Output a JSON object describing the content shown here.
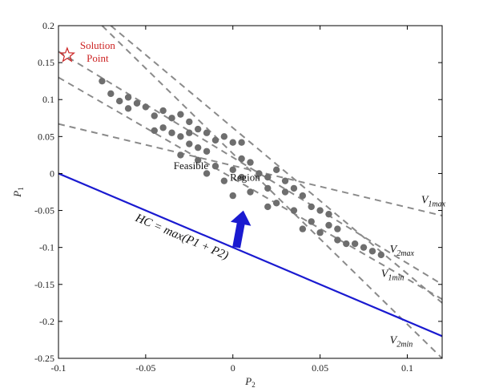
{
  "chart_data": {
    "type": "scatter",
    "title": "",
    "xlabel": "P_2",
    "ylabel": "P_1",
    "xlim": [
      -0.1,
      0.12
    ],
    "ylim": [
      -0.25,
      0.2
    ],
    "xticks": [
      "-0.1",
      "-0.05",
      "0",
      "0.05",
      "0.1"
    ],
    "xtick_values": [
      -0.1,
      -0.05,
      0,
      0.05,
      0.1
    ],
    "yticks": [
      "0.2",
      "0.15",
      "0.1",
      "0.05",
      "0",
      "-0.05",
      "-0.1",
      "-0.15",
      "-0.2",
      "-0.25"
    ],
    "ytick_values": [
      0.2,
      0.15,
      0.1,
      0.05,
      0,
      -0.05,
      -0.1,
      -0.15,
      -0.2,
      -0.25
    ],
    "grid": false,
    "colors": {
      "points": "#6e6e6e",
      "bounds": "#8a8a8a",
      "hc_line": "#1a1ad0",
      "arrow": "#1a1ad0",
      "solution": "#cc2222"
    },
    "feasible_points": [
      [
        -0.075,
        0.125
      ],
      [
        -0.07,
        0.108
      ],
      [
        -0.065,
        0.098
      ],
      [
        -0.06,
        0.103
      ],
      [
        -0.06,
        0.088
      ],
      [
        -0.055,
        0.095
      ],
      [
        -0.05,
        0.09
      ],
      [
        -0.045,
        0.078
      ],
      [
        -0.04,
        0.085
      ],
      [
        -0.035,
        0.075
      ],
      [
        -0.03,
        0.08
      ],
      [
        -0.025,
        0.07
      ],
      [
        -0.045,
        0.058
      ],
      [
        -0.04,
        0.062
      ],
      [
        -0.035,
        0.055
      ],
      [
        -0.03,
        0.05
      ],
      [
        -0.025,
        0.055
      ],
      [
        -0.02,
        0.06
      ],
      [
        -0.015,
        0.055
      ],
      [
        -0.01,
        0.045
      ],
      [
        -0.005,
        0.05
      ],
      [
        0.0,
        0.042
      ],
      [
        -0.025,
        0.04
      ],
      [
        -0.02,
        0.035
      ],
      [
        -0.015,
        0.03
      ],
      [
        0.005,
        0.042
      ],
      [
        -0.03,
        0.025
      ],
      [
        -0.02,
        0.018
      ],
      [
        -0.01,
        0.01
      ],
      [
        0.0,
        0.005
      ],
      [
        0.005,
        0.02
      ],
      [
        0.01,
        0.015
      ],
      [
        -0.015,
        0.0
      ],
      [
        -0.005,
        -0.01
      ],
      [
        0.005,
        -0.005
      ],
      [
        0.015,
        0.0
      ],
      [
        0.02,
        -0.005
      ],
      [
        0.025,
        0.005
      ],
      [
        0.03,
        -0.01
      ],
      [
        0.035,
        -0.02
      ],
      [
        0.0,
        -0.03
      ],
      [
        0.01,
        -0.025
      ],
      [
        0.02,
        -0.02
      ],
      [
        0.03,
        -0.025
      ],
      [
        0.04,
        -0.03
      ],
      [
        0.045,
        -0.045
      ],
      [
        0.05,
        -0.05
      ],
      [
        0.055,
        -0.055
      ],
      [
        0.02,
        -0.045
      ],
      [
        0.025,
        -0.04
      ],
      [
        0.035,
        -0.05
      ],
      [
        0.045,
        -0.065
      ],
      [
        0.055,
        -0.07
      ],
      [
        0.06,
        -0.075
      ],
      [
        0.05,
        -0.08
      ],
      [
        0.04,
        -0.075
      ],
      [
        0.06,
        -0.09
      ],
      [
        0.065,
        -0.095
      ],
      [
        0.07,
        -0.095
      ],
      [
        0.075,
        -0.1
      ],
      [
        0.08,
        -0.105
      ],
      [
        0.085,
        -0.11
      ]
    ],
    "solution_point": {
      "x": -0.095,
      "y": 0.16,
      "label_lines": [
        "Solution",
        "Point"
      ]
    },
    "annotation": {
      "lines": [
        "Feasible",
        "Region"
      ]
    },
    "hc_line": {
      "x": [
        -0.1,
        0.12
      ],
      "y": [
        0.0,
        -0.22
      ],
      "label": "HC = max(P1 + P2)"
    },
    "arrow": {
      "from": [
        0.002,
        -0.1
      ],
      "to": [
        0.006,
        -0.05
      ]
    },
    "bound_lines": [
      {
        "name": "V1max",
        "label_main": "V",
        "label_sub": "1max",
        "x": [
          -0.1,
          0.12
        ],
        "y": [
          0.067,
          -0.057
        ],
        "label_at": [
          0.108,
          -0.04
        ]
      },
      {
        "name": "V2max",
        "label_main": "V",
        "label_sub": "2max",
        "x": [
          -0.1,
          0.12
        ],
        "y": [
          0.165,
          -0.15
        ],
        "label_at": [
          0.09,
          -0.107
        ]
      },
      {
        "name": "V1min",
        "label_main": "V",
        "label_sub": "1min",
        "x": [
          -0.1,
          0.12
        ],
        "y": [
          0.13,
          -0.17
        ],
        "label_at": [
          0.085,
          -0.14
        ]
      },
      {
        "name": "V2min",
        "label_main": "V",
        "label_sub": "2min",
        "x": [
          -0.075,
          0.12
        ],
        "y": [
          0.2,
          -0.25
        ],
        "label_at": [
          0.09,
          -0.23
        ]
      },
      {
        "name": "B5",
        "label_main": "",
        "label_sub": "",
        "x": [
          -0.07,
          0.12
        ],
        "y": [
          0.2,
          -0.175
        ],
        "label_at": null
      }
    ]
  }
}
